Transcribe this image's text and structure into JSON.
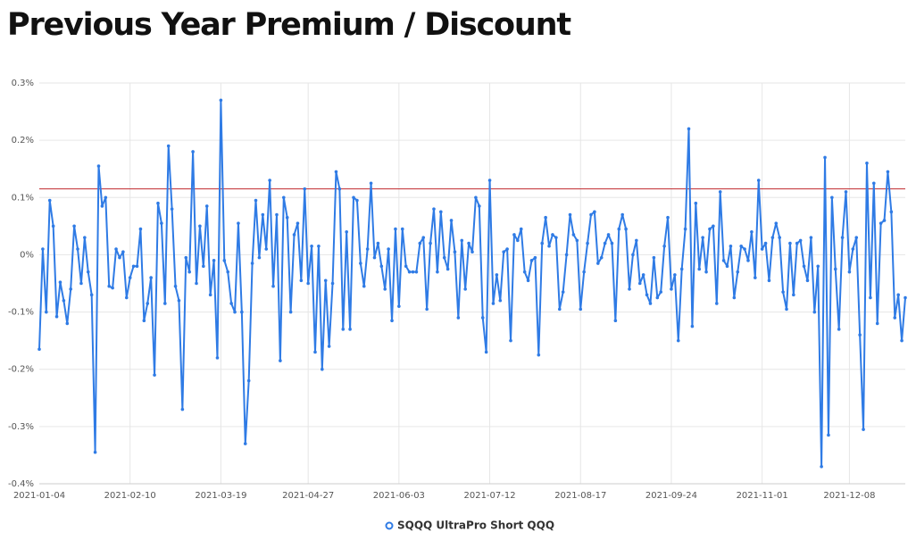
{
  "chart_data": {
    "type": "line",
    "title": "Previous Year Premium / Discount",
    "categories": [
      "2021-01-04",
      null,
      null,
      null,
      null,
      null,
      null,
      null,
      null,
      null,
      null,
      null,
      null,
      null,
      null,
      null,
      null,
      null,
      null,
      null,
      null,
      null,
      null,
      null,
      null,
      null,
      "2021-02-10",
      null,
      null,
      null,
      null,
      null,
      null,
      null,
      null,
      null,
      null,
      null,
      null,
      null,
      null,
      null,
      null,
      null,
      null,
      null,
      null,
      null,
      null,
      null,
      null,
      null,
      "2021-03-19",
      null,
      null,
      null,
      null,
      null,
      null,
      null,
      null,
      null,
      null,
      null,
      null,
      null,
      null,
      null,
      null,
      null,
      null,
      null,
      null,
      null,
      null,
      null,
      null,
      "2021-04-27",
      null,
      null,
      null,
      null,
      null,
      null,
      null,
      null,
      null,
      null,
      null,
      null,
      null,
      null,
      null,
      null,
      null,
      null,
      null,
      null,
      null,
      null,
      null,
      null,
      null,
      "2021-06-03",
      null,
      null,
      null,
      null,
      null,
      null,
      null,
      null,
      null,
      null,
      null,
      null,
      null,
      null,
      null,
      null,
      null,
      null,
      null,
      null,
      null,
      null,
      null,
      null,
      null,
      "2021-07-12",
      null,
      null,
      null,
      null,
      null,
      null,
      null,
      null,
      null,
      null,
      null,
      null,
      null,
      null,
      null,
      null,
      null,
      null,
      null,
      null,
      null,
      null,
      null,
      null,
      null,
      "2021-08-17",
      null,
      null,
      null,
      null,
      null,
      null,
      null,
      null,
      null,
      null,
      null,
      null,
      null,
      null,
      null,
      null,
      null,
      null,
      null,
      null,
      null,
      null,
      null,
      null,
      null,
      "2021-09-24",
      null,
      null,
      null,
      null,
      null,
      null,
      null,
      null,
      null,
      null,
      null,
      null,
      null,
      null,
      null,
      null,
      null,
      null,
      null,
      null,
      null,
      null,
      null,
      null,
      null,
      "2021-11-01",
      null,
      null,
      null,
      null,
      null,
      null,
      null,
      null,
      null,
      null,
      null,
      null,
      null,
      null,
      null,
      null,
      null,
      null,
      null,
      null,
      null,
      null,
      null,
      null,
      "2021-12-08",
      null,
      null,
      null,
      null,
      null,
      null,
      null,
      null,
      null,
      null,
      null,
      null,
      null,
      null,
      null,
      null
    ],
    "series": [
      {
        "name": "SQQQ UltraPro Short QQQ",
        "color": "#2f7be5",
        "values": [
          -0.165,
          0.01,
          -0.1,
          0.095,
          0.05,
          -0.108,
          -0.048,
          -0.08,
          -0.12,
          -0.06,
          0.05,
          0.01,
          -0.05,
          0.03,
          -0.03,
          -0.07,
          -0.345,
          0.155,
          0.085,
          0.1,
          -0.055,
          -0.058,
          0.01,
          -0.005,
          0.005,
          -0.075,
          -0.04,
          -0.02,
          -0.02,
          0.045,
          -0.115,
          -0.085,
          -0.04,
          -0.21,
          0.09,
          0.055,
          -0.085,
          0.19,
          0.08,
          -0.055,
          -0.08,
          -0.27,
          -0.005,
          -0.03,
          0.18,
          -0.05,
          0.05,
          -0.02,
          0.085,
          -0.07,
          -0.01,
          -0.18,
          0.27,
          -0.01,
          -0.03,
          -0.085,
          -0.1,
          0.055,
          -0.1,
          -0.33,
          -0.22,
          -0.015,
          0.095,
          -0.005,
          0.07,
          0.01,
          0.13,
          -0.055,
          0.07,
          -0.185,
          0.1,
          0.065,
          -0.1,
          0.035,
          0.055,
          -0.045,
          0.115,
          -0.05,
          0.015,
          -0.17,
          0.015,
          -0.2,
          -0.045,
          -0.16,
          -0.05,
          0.145,
          0.115,
          -0.13,
          0.04,
          -0.13,
          0.1,
          0.095,
          -0.015,
          -0.055,
          0.01,
          0.125,
          -0.005,
          0.02,
          -0.02,
          -0.06,
          0.01,
          -0.115,
          0.045,
          -0.09,
          0.045,
          -0.02,
          -0.03,
          -0.03,
          -0.03,
          0.02,
          0.03,
          -0.095,
          0.02,
          0.08,
          -0.03,
          0.075,
          -0.005,
          -0.025,
          0.06,
          0.005,
          -0.11,
          0.025,
          -0.06,
          0.02,
          0.005,
          0.1,
          0.085,
          -0.11,
          -0.17,
          0.13,
          -0.085,
          -0.035,
          -0.08,
          0.005,
          0.01,
          -0.15,
          0.035,
          0.025,
          0.045,
          -0.03,
          -0.045,
          -0.01,
          -0.005,
          -0.175,
          0.02,
          0.065,
          0.015,
          0.035,
          0.03,
          -0.095,
          -0.065,
          0,
          0.07,
          0.035,
          0.025,
          -0.095,
          -0.03,
          0.02,
          0.07,
          0.075,
          -0.015,
          -0.005,
          0.02,
          0.035,
          0.02,
          -0.115,
          0.045,
          0.07,
          0.045,
          -0.06,
          0,
          0.025,
          -0.05,
          -0.035,
          -0.07,
          -0.085,
          -0.005,
          -0.075,
          -0.065,
          0.015,
          0.065,
          -0.06,
          -0.035,
          -0.15,
          -0.025,
          0.045,
          0.22,
          -0.125,
          0.09,
          -0.025,
          0.03,
          -0.03,
          0.045,
          0.05,
          -0.085,
          0.11,
          -0.01,
          -0.02,
          0.015,
          -0.075,
          -0.03,
          0.015,
          0.01,
          -0.01,
          0.04,
          -0.04,
          0.13,
          0.01,
          0.02,
          -0.045,
          0.03,
          0.055,
          0.03,
          -0.065,
          -0.095,
          0.02,
          -0.07,
          0.02,
          0.025,
          -0.02,
          -0.045,
          0.03,
          -0.1,
          -0.02,
          -0.37,
          0.17,
          -0.315,
          0.1,
          -0.025,
          -0.13,
          0.03,
          0.11,
          -0.03,
          0.01,
          0.03,
          -0.14,
          -0.305,
          0.16,
          -0.075,
          0.125,
          -0.12,
          0.055,
          0.06,
          0.145,
          0.075,
          -0.11,
          -0.07,
          -0.15,
          -0.075
        ]
      }
    ],
    "reference_line": {
      "value": 0.115,
      "color": "#c0282d"
    },
    "ylim": [
      -0.4,
      0.3
    ],
    "yticks": [
      {
        "value": -0.4,
        "label": "-0.4%"
      },
      {
        "value": -0.3,
        "label": "-0.3%"
      },
      {
        "value": -0.2,
        "label": "-0.2%"
      },
      {
        "value": -0.1,
        "label": "-0.1%"
      },
      {
        "value": 0,
        "label": "0%"
      },
      {
        "value": 0.1,
        "label": "0.1%"
      },
      {
        "value": 0.2,
        "label": "0.2%"
      },
      {
        "value": 0.3,
        "label": "0.3%"
      }
    ],
    "grid": true,
    "legend": "bottom"
  }
}
